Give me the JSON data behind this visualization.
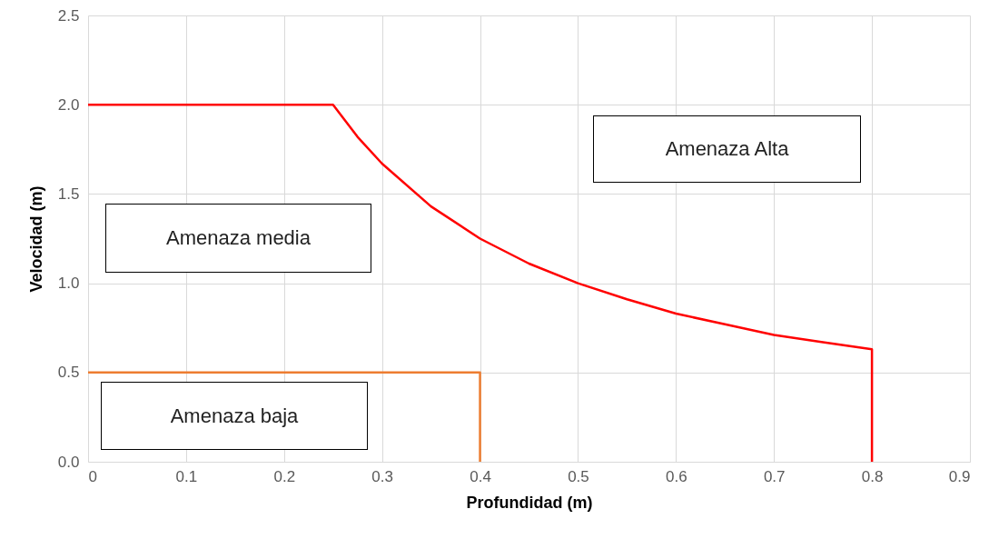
{
  "chart_data": {
    "type": "line",
    "xlabel": "Profundidad (m)",
    "ylabel": "Velocidad (m)",
    "xlim": [
      0,
      0.9
    ],
    "xticks": [
      0,
      0.1,
      0.2,
      0.3,
      0.4,
      0.5,
      0.6,
      0.7,
      0.8,
      0.9
    ],
    "ylim": [
      0,
      2.5
    ],
    "yticks": [
      {
        "value": 0,
        "label": "0.0"
      },
      {
        "value": 0.5,
        "label": "0.5"
      },
      {
        "value": 1,
        "label": "1.0"
      },
      {
        "value": 1.5,
        "label": "1.5"
      },
      {
        "value": 2,
        "label": "2.0"
      },
      {
        "value": 2.5,
        "label": "2.5"
      }
    ],
    "grid": true,
    "marker": "none",
    "line_style": "solid",
    "series": [
      {
        "color": "#ff0000",
        "x": [
          0,
          0.25,
          0.275,
          0.3,
          0.35,
          0.4,
          0.45,
          0.5,
          0.55,
          0.6,
          0.65,
          0.7,
          0.75,
          0.8,
          0.8
        ],
        "values": [
          2.0,
          2.0,
          1.82,
          1.67,
          1.43,
          1.25,
          1.11,
          1.0,
          0.91,
          0.83,
          0.77,
          0.71,
          0.67,
          0.63,
          0
        ]
      },
      {
        "color": "#ed7d31",
        "x": [
          0,
          0.4,
          0.4
        ],
        "values": [
          0.5,
          0.5,
          0
        ]
      }
    ],
    "annotations": [
      "Amenaza media",
      "Amenaza Alta",
      "Amenaza baja"
    ]
  }
}
